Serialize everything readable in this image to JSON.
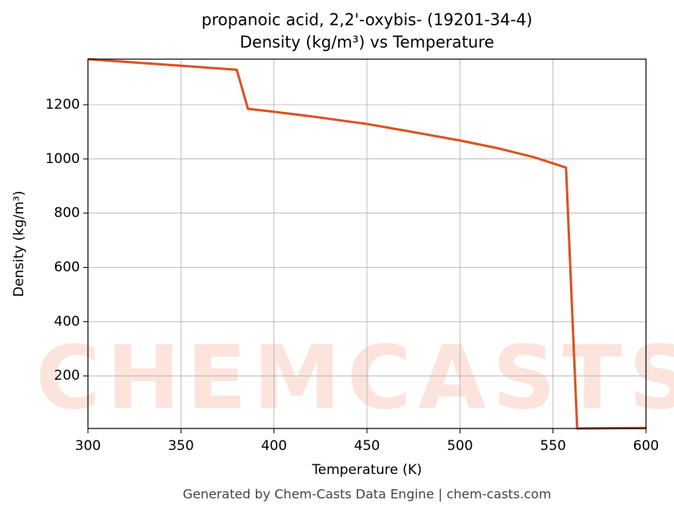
{
  "chart_data": {
    "type": "line",
    "title": "propanoic acid, 2,2'-oxybis- (19201-34-4)",
    "subtitle": "Density (kg/m³) vs Temperature",
    "x_label": "Temperature (K)",
    "y_label": "Density (kg/m³)",
    "footer": "Generated by Chem-Casts Data Engine | chem-casts.com",
    "watermark": "CHEMCASTS",
    "x": [
      300,
      380,
      386,
      400,
      420,
      450,
      470,
      500,
      520,
      540,
      557,
      563,
      600
    ],
    "series": [
      {
        "name": "Density",
        "color": "#d95323",
        "values": [
          1368,
          1329,
          1185,
          1174,
          1157,
          1129,
          1105,
          1068,
          1040,
          1006,
          968,
          6,
          8
        ]
      }
    ],
    "xlim": [
      300,
      600
    ],
    "xticks": [
      300,
      350,
      400,
      450,
      500,
      550,
      600
    ],
    "ylim": [
      6,
      1368
    ],
    "yticks": [
      200,
      400,
      600,
      800,
      1000,
      1200
    ],
    "grid": true
  }
}
